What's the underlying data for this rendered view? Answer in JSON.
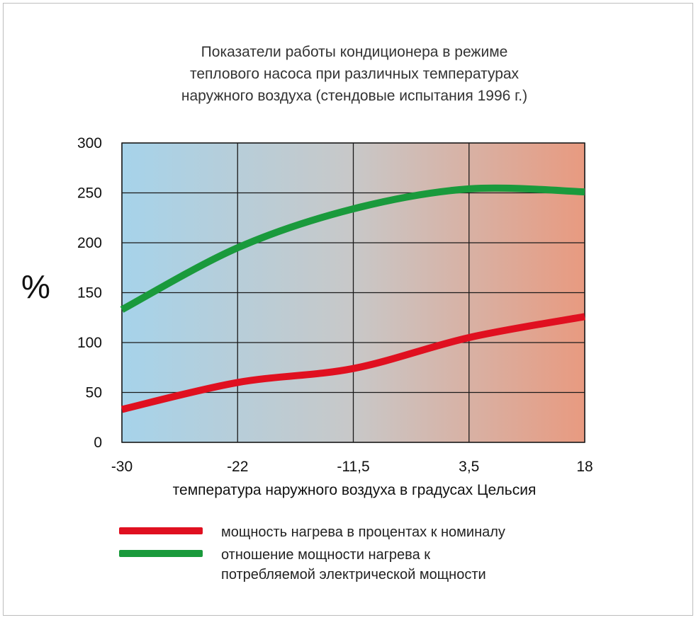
{
  "chart_data": {
    "type": "line",
    "title": "Показатели работы кондиционера в режиме\nтеплового насоса при различных температурах\nнаружного воздуха (стендовые испытания 1996 г.)",
    "ylabel": "%",
    "xlabel": "температура наружного воздуха в градусах Цельсия",
    "x_ticks": [
      "-30",
      "-22",
      "-11,5",
      "3,5",
      "18"
    ],
    "y_ticks": [
      "0",
      "50",
      "100",
      "150",
      "200",
      "250",
      "300"
    ],
    "ylim": [
      0,
      300
    ],
    "grid": true,
    "legend_position": "bottom",
    "series": [
      {
        "name": "мощность нагрева в процентах к номиналу",
        "color": "#e01020",
        "x": [
          "-30",
          "-22",
          "-11,5",
          "3,5",
          "18"
        ],
        "y": [
          33,
          60,
          74,
          105,
          126
        ]
      },
      {
        "name": "отношение мощности нагрева к\nпотребляемой электрической мощности",
        "color": "#1a9a3c",
        "x": [
          "-30",
          "-22",
          "-11,5",
          "3,5",
          "18"
        ],
        "y": [
          133,
          195,
          234,
          254,
          251
        ]
      }
    ],
    "background_gradient": [
      "#a6d3ea",
      "#c8c8c8",
      "#e89a80"
    ],
    "grid_color": "#1a1a1a"
  }
}
